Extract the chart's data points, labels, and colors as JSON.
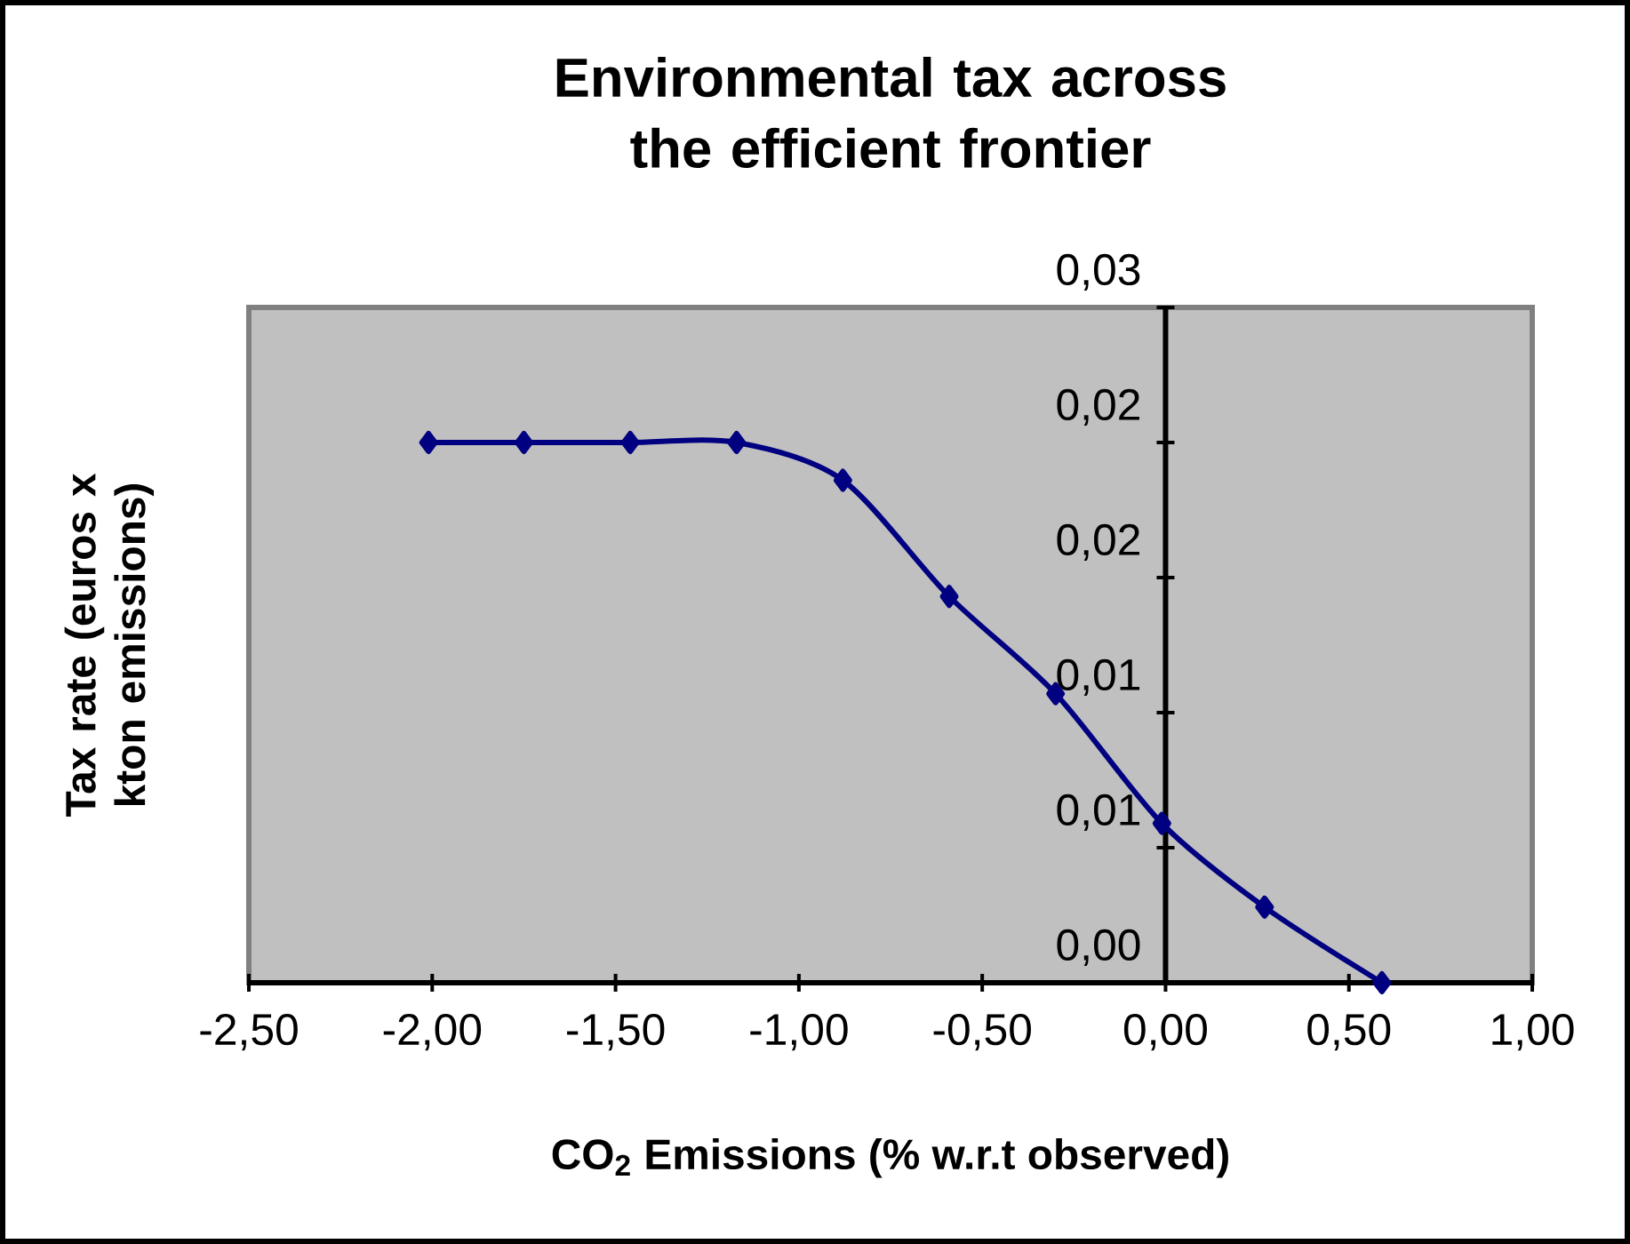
{
  "chart_data": {
    "type": "line",
    "title": "Environmental tax across the efficient frontier",
    "xlabel": "CO$_{2}$ Emissions (% w.r.t observed)",
    "ylabel": "Tax rate (euros x kton emissions)",
    "x": [
      -2.01,
      -1.75,
      -1.46,
      -1.17,
      -0.88,
      -0.59,
      -0.3,
      -0.01,
      0.27,
      0.59
    ],
    "series": [
      {
        "color": "#000080",
        "values": [
          0.02,
          0.02,
          0.02,
          0.02,
          0.0186,
          0.0143,
          0.0107,
          0.0059,
          0.0028,
          0.0
        ]
      }
    ],
    "xlim": [
      -2.5,
      1.0
    ],
    "ylim": [
      0,
      0.025
    ],
    "xticks": [
      {
        "value": -2.5,
        "label": "-2,50"
      },
      {
        "value": -2.0,
        "label": "-2,00"
      },
      {
        "value": -1.5,
        "label": "-1,50"
      },
      {
        "value": -1.0,
        "label": "-1,00"
      },
      {
        "value": -0.5,
        "label": "-0,50"
      },
      {
        "value": 0.0,
        "label": "0,00"
      },
      {
        "value": 0.5,
        "label": "0,50"
      },
      {
        "value": 1.0,
        "label": "1,00"
      }
    ],
    "yticks": [
      {
        "value": 0,
        "label": "0,00"
      },
      {
        "value": 0.005,
        "label": "0,01"
      },
      {
        "value": 0.01,
        "label": "0,01"
      },
      {
        "value": 0.015,
        "label": "0,02"
      },
      {
        "value": 0.02,
        "label": "0,02"
      },
      {
        "value": 0.025,
        "label": "0,03"
      }
    ],
    "marker": "diamond",
    "line_style": "solid"
  }
}
